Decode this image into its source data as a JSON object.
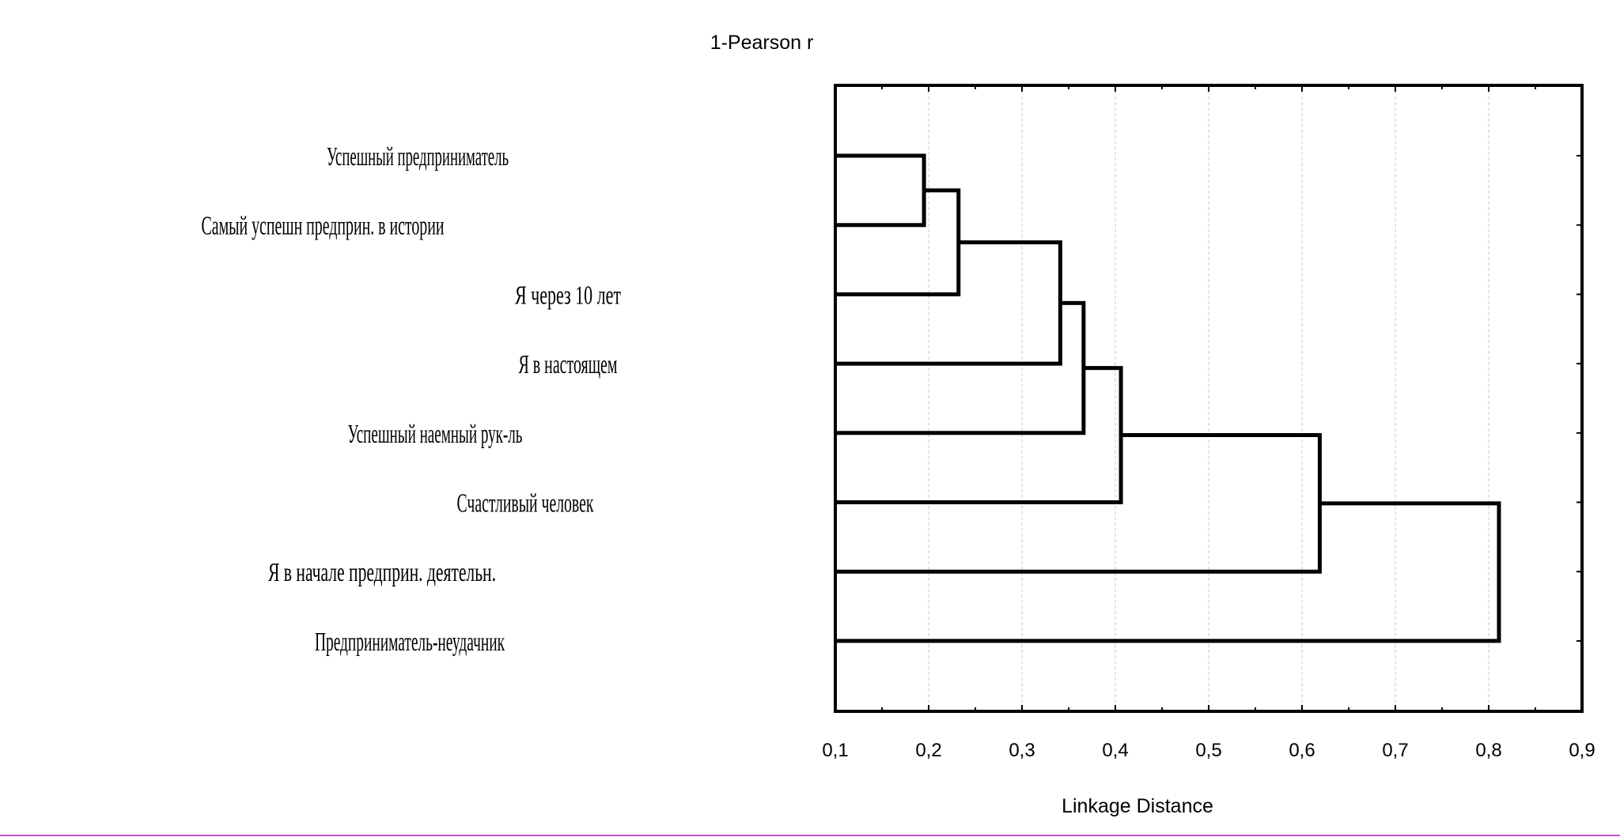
{
  "chart_data": {
    "type": "dendrogram",
    "title": "1-Pearson r",
    "xlabel": "Linkage Distance",
    "ylabel": "",
    "xlim": [
      0.1,
      0.9
    ],
    "x_ticks": [
      "0,1",
      "0,2",
      "0,3",
      "0,4",
      "0,5",
      "0,6",
      "0,7",
      "0,8",
      "0,9"
    ],
    "x_tick_values": [
      0.1,
      0.2,
      0.3,
      0.4,
      0.5,
      0.6,
      0.7,
      0.8,
      0.9
    ],
    "grid": true,
    "leaves": [
      "Успешный предприниматель",
      "Самый успешн предприн. в истории",
      "Я через 10 лет",
      "Я в настоящем",
      "Успешный наемный рук-ль",
      "Счастливый человек",
      "Я в начале предприн. деятельн.",
      "Предприниматель-неудачник"
    ],
    "merges": [
      {
        "left": 0,
        "right": 1,
        "height": 0.195
      },
      {
        "left": 8,
        "right": 2,
        "height": 0.232
      },
      {
        "left": 9,
        "right": 3,
        "height": 0.341
      },
      {
        "left": 10,
        "right": 4,
        "height": 0.366
      },
      {
        "left": 11,
        "right": 5,
        "height": 0.406
      },
      {
        "left": 12,
        "right": 6,
        "height": 0.619
      },
      {
        "left": 13,
        "right": 7,
        "height": 0.811
      }
    ],
    "colors": {
      "line": "#000000",
      "grid": "#c8c8c8",
      "bottom_rule": "#c84fc8"
    }
  }
}
